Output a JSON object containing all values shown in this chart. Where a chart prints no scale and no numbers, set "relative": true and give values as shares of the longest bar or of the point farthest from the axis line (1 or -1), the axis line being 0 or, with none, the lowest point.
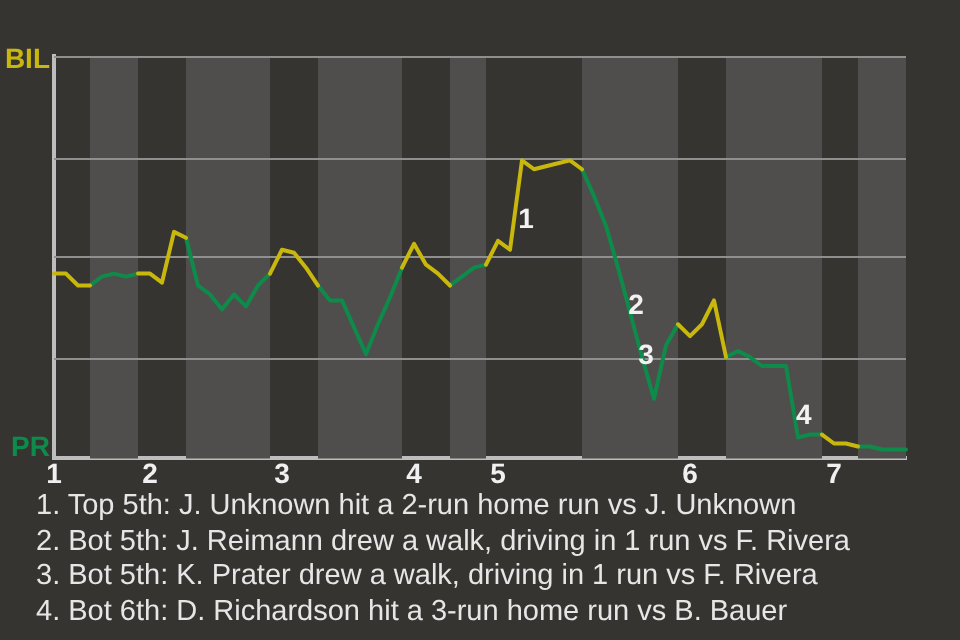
{
  "chart_data": {
    "type": "line",
    "relative": true,
    "categories": [
      "1",
      null,
      null,
      null,
      null,
      null,
      null,
      null,
      "2",
      null,
      null,
      null,
      null,
      null,
      null,
      null,
      null,
      null,
      null,
      "3",
      null,
      null,
      null,
      null,
      null,
      null,
      null,
      null,
      null,
      null,
      "4",
      null,
      null,
      null,
      null,
      null,
      null,
      "5",
      null,
      null,
      null,
      null,
      null,
      null,
      null,
      null,
      null,
      null,
      null,
      null,
      null,
      null,
      null,
      "6",
      null,
      null,
      null,
      null,
      null,
      null,
      null,
      null,
      null,
      null,
      null,
      "7",
      null,
      null,
      null,
      null,
      null,
      null
    ],
    "series": [
      {
        "color": "#c8b70c",
        "values": [
          0.62,
          0.62,
          0.58,
          0.58,
          null,
          null,
          null,
          0.62,
          0.62,
          0.59,
          0.76,
          0.74,
          null,
          null,
          null,
          null,
          null,
          null,
          0.62,
          0.7,
          0.69,
          0.64,
          0.58,
          null,
          null,
          null,
          null,
          null,
          null,
          0.64,
          0.72,
          0.65,
          0.62,
          0.58,
          null,
          null,
          0.65,
          0.73,
          0.7,
          1,
          0.97,
          0.98,
          0.99,
          1,
          0.97,
          null,
          null,
          null,
          null,
          null,
          null,
          null,
          0.45,
          0.41,
          0.45,
          0.53,
          0.34,
          null,
          null,
          null,
          null,
          null,
          null,
          null,
          0.08,
          0.05,
          0.05,
          0.04,
          null,
          null,
          null,
          null
        ]
      },
      {
        "color": "#0e8a4a",
        "values": [
          null,
          null,
          null,
          0.58,
          0.61,
          0.62,
          0.61,
          0.62,
          null,
          null,
          null,
          0.74,
          0.58,
          0.55,
          0.5,
          0.55,
          0.51,
          0.58,
          0.62,
          null,
          null,
          null,
          0.58,
          0.53,
          0.53,
          0.44,
          0.35,
          0.45,
          0.54,
          0.64,
          null,
          null,
          null,
          0.58,
          0.61,
          0.64,
          0.65,
          null,
          null,
          null,
          null,
          null,
          null,
          null,
          0.97,
          0.88,
          0.78,
          0.64,
          0.49,
          0.34,
          0.2,
          0.38,
          0.45,
          null,
          null,
          null,
          0.34,
          0.36,
          0.34,
          0.31,
          0.31,
          0.31,
          0.07,
          0.08,
          0.08,
          null,
          null,
          0.04,
          0.04,
          0.03,
          0.03,
          0.03
        ]
      }
    ],
    "marker": "none",
    "ref_lines": [
      {
        "axis": "y",
        "value": 0.34,
        "color": "#8f8f8f"
      },
      {
        "axis": "y",
        "value": 0.68,
        "color": "#8f8f8f"
      },
      {
        "axis": "y",
        "value": 1.01,
        "color": "#8f8f8f"
      },
      {
        "axis": "y",
        "value": 1.35,
        "color": "#8f8f8f"
      }
    ],
    "annotations": [
      "BIL",
      "PR",
      "1",
      "2",
      "3",
      "4",
      "1. Top 5th: J. Unknown hit a 2-run home run vs J. Unknown",
      "2. Bot 5th: J. Reimann drew a walk, driving in 1 run vs F. Rivera",
      "3. Bot 5th: K. Prater drew a walk, driving in 1 run vs F. Rivera",
      "4. Bot 6th: D. Richardson hit a 3-run home run vs B. Bauer"
    ]
  }
}
